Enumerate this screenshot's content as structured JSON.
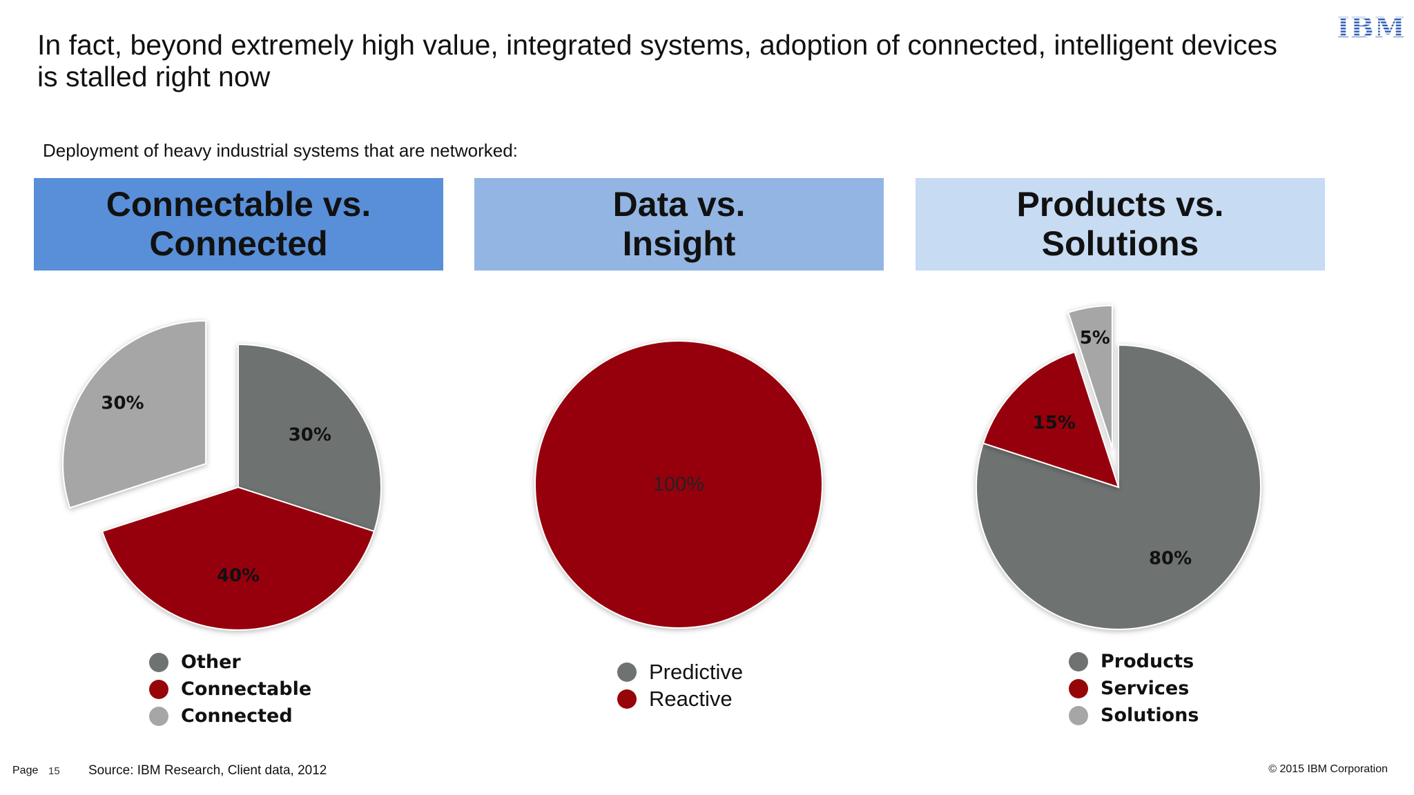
{
  "title": "In fact, beyond extremely high value, integrated systems, adoption of connected, intelligent devices is stalled right now",
  "logo_text": "IBM",
  "subtitle": "Deployment of heavy industrial systems that are networked:",
  "panels": [
    {
      "header": "Connectable vs.\nConnected"
    },
    {
      "header": "Data vs.\nInsight"
    },
    {
      "header": "Products vs.\nSolutions"
    }
  ],
  "footer": {
    "page_label": "Page",
    "page_number": "15",
    "source": "Source: IBM Research, Client data, 2012",
    "copyright": "© 2015 IBM Corporation"
  },
  "colors": {
    "dark_gray": "#6e7270",
    "red": "#960608",
    "light_gray": "#a6a6a6",
    "header1": "#588fd8",
    "header2": "#93b5e3",
    "header3": "#c7dbf3"
  },
  "chart_data": [
    {
      "type": "pie",
      "title": "",
      "series": [
        {
          "name": "Other",
          "value": 30,
          "label": "30%",
          "color": "#6e7270",
          "exploded": false
        },
        {
          "name": "Connectable",
          "value": 40,
          "label": "40%",
          "color": "#960608",
          "exploded": false
        },
        {
          "name": "Connected",
          "value": 30,
          "label": "30%",
          "color": "#a6a6a6",
          "exploded": true
        }
      ],
      "legend": [
        "Other",
        "Connectable",
        "Connected"
      ],
      "legend_placement": "bottom"
    },
    {
      "type": "pie",
      "title": "",
      "series": [
        {
          "name": "Predictive",
          "value": 0,
          "label": "",
          "color": "#6e7270",
          "exploded": false
        },
        {
          "name": "Reactive",
          "value": 100,
          "label": "100%",
          "color": "#960608",
          "exploded": false
        }
      ],
      "legend": [
        "Predictive",
        "Reactive"
      ],
      "legend_placement": "bottom"
    },
    {
      "type": "pie",
      "title": "",
      "series": [
        {
          "name": "Products",
          "value": 80,
          "label": "80%",
          "color": "#6e7270",
          "exploded": false
        },
        {
          "name": "Services",
          "value": 15,
          "label": "15%",
          "color": "#960608",
          "exploded": false
        },
        {
          "name": "Solutions",
          "value": 5,
          "label": "5%",
          "color": "#a6a6a6",
          "exploded": true
        }
      ],
      "legend": [
        "Products",
        "Services",
        "Solutions"
      ],
      "legend_placement": "bottom"
    }
  ]
}
